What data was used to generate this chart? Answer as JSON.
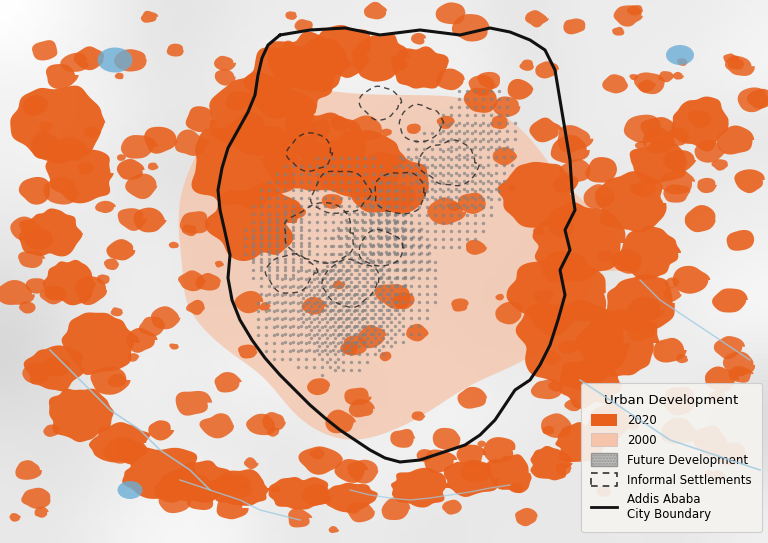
{
  "legend_title": "Urban Development",
  "legend_items": [
    {
      "label": "2020",
      "color": "#E8601C"
    },
    {
      "label": "2000",
      "color": "#F7C9B0"
    },
    {
      "label": "Future Development",
      "facecolor": "#A0A0A0",
      "hatch": "......"
    },
    {
      "label": "Informal Settlements",
      "edgecolor": "#333333"
    },
    {
      "label": "Addis Ababa\nCity Boundary",
      "linecolor": "#111111"
    }
  ],
  "terrain_bg": "#E8E4DC",
  "terrain_hill_color": "#D0CBC0",
  "orange_color": "#E8601C",
  "pink_2000_color": "#F5C4AA",
  "gray_future_color": "#999999",
  "river_color": "#9ECAE1",
  "lake_color": "#6BAED6",
  "city_boundary_color": "#111111",
  "figsize": [
    7.68,
    5.43
  ],
  "dpi": 100,
  "xlim": [
    0,
    768
  ],
  "ylim": [
    0,
    543
  ]
}
